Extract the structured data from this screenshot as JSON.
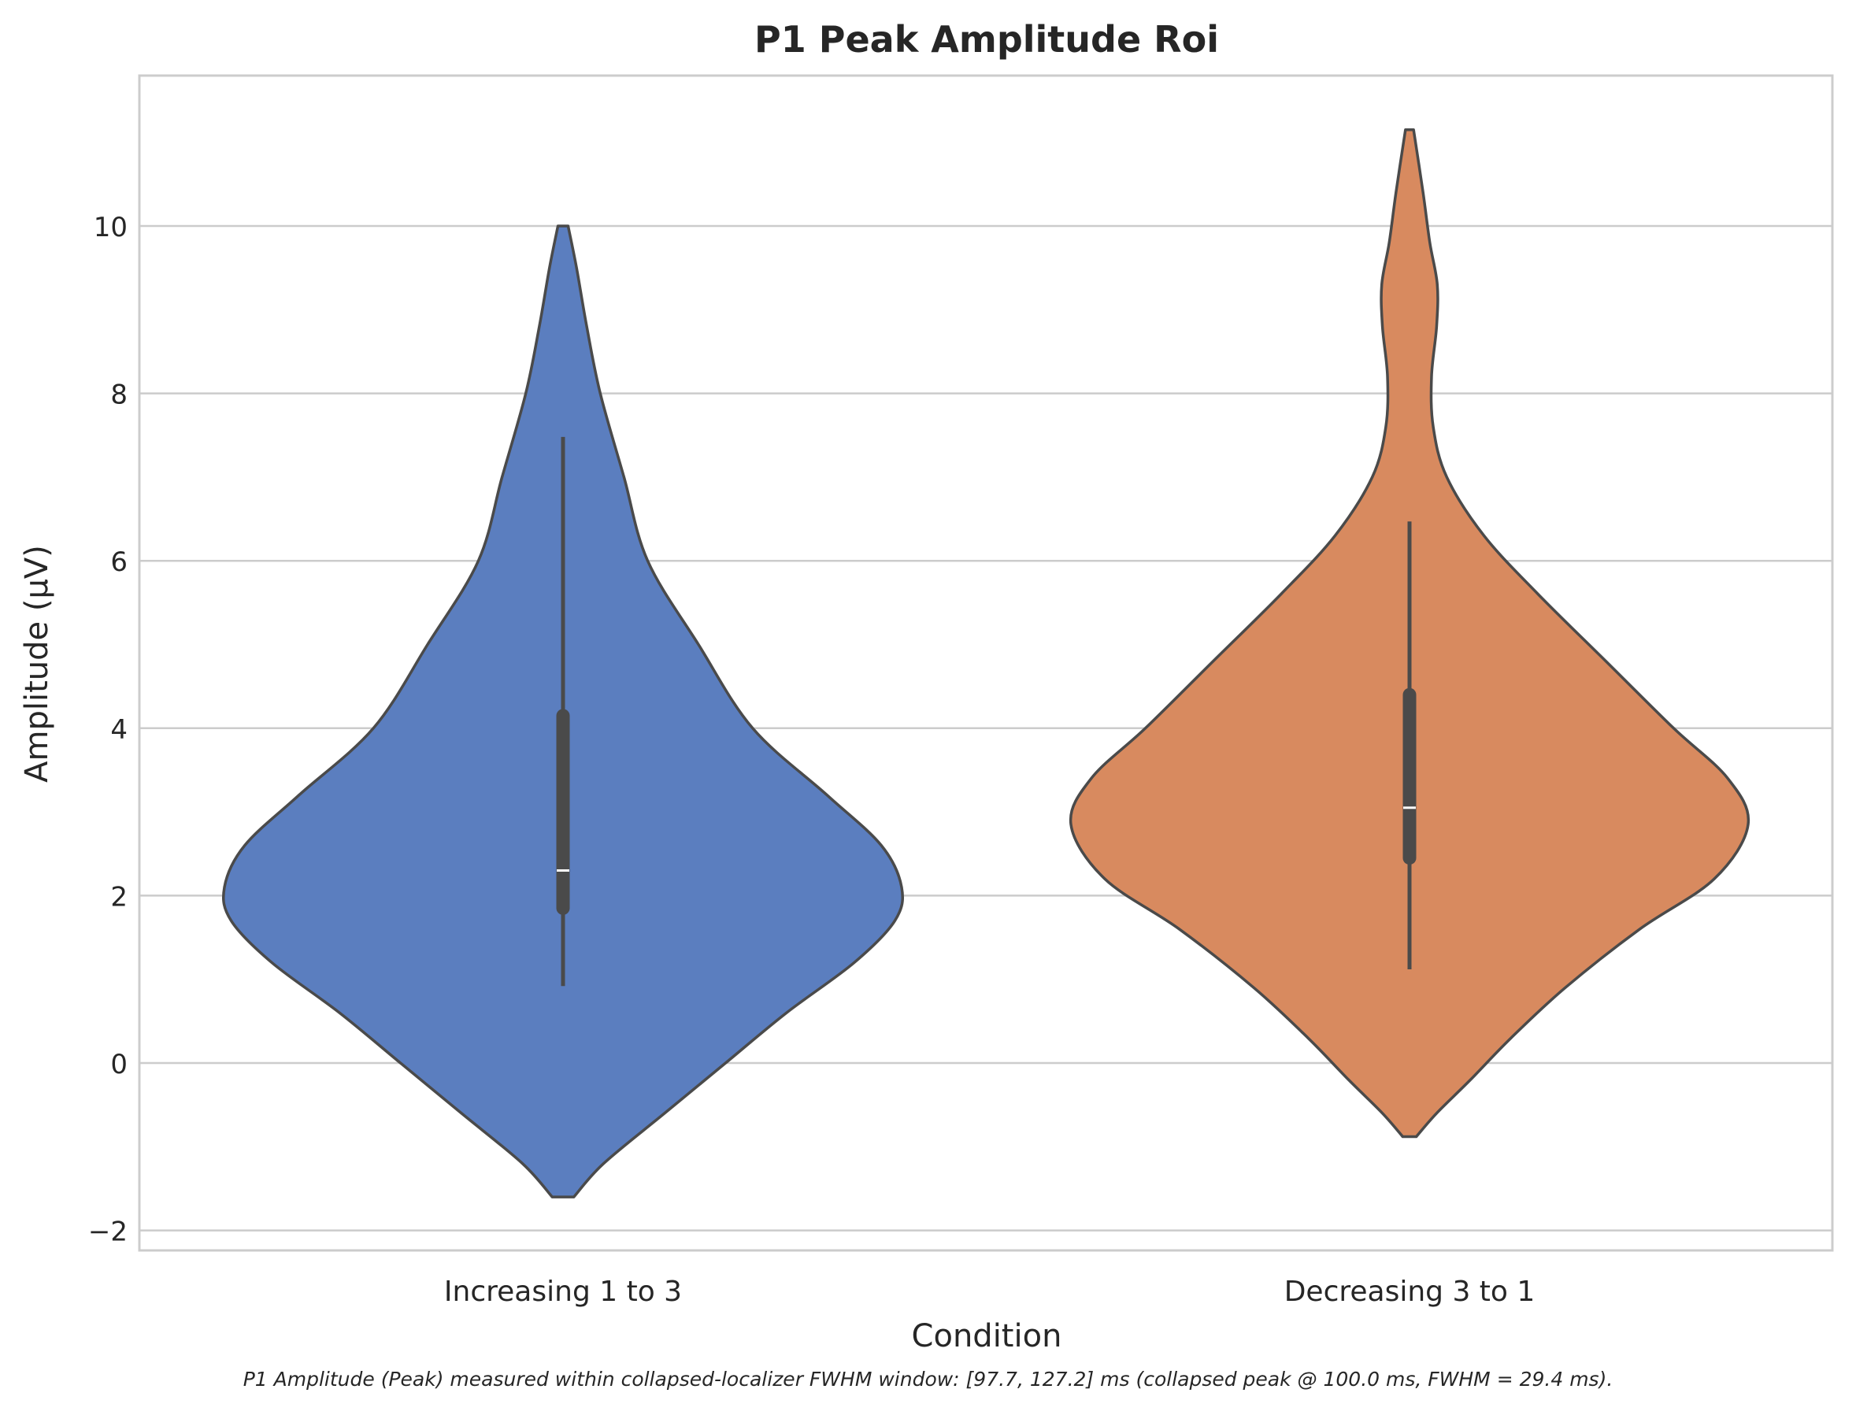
{
  "chart_data": {
    "type": "violin",
    "title": "P1 Peak Amplitude Roi",
    "xlabel": "Condition",
    "ylabel": "Amplitude (µV)",
    "ylim": [
      -2.25,
      11.8
    ],
    "yticks": [
      -2,
      0,
      2,
      4,
      6,
      8,
      10
    ],
    "ytick_labels": [
      "−2",
      "0",
      "2",
      "4",
      "6",
      "8",
      "10"
    ],
    "grid": "horizontal",
    "categories": [
      "Increasing 1 to 3",
      "Decreasing 3 to 1"
    ],
    "series": [
      {
        "category": "Increasing 1 to 3",
        "color": "#5b7ebf",
        "median": 2.3,
        "q1": 1.85,
        "q3": 4.15,
        "whisker_low": 0.92,
        "whisker_high": 7.48,
        "density": [
          [
            -1.6,
            0.032
          ],
          [
            -1.2,
            0.12
          ],
          [
            -0.6,
            0.3
          ],
          [
            0,
            0.48
          ],
          [
            0.6,
            0.66
          ],
          [
            1.2,
            0.86
          ],
          [
            1.7,
            0.98
          ],
          [
            2.1,
            1.0
          ],
          [
            2.6,
            0.94
          ],
          [
            3.2,
            0.78
          ],
          [
            4.0,
            0.56
          ],
          [
            5.0,
            0.4
          ],
          [
            6.0,
            0.25
          ],
          [
            7.0,
            0.18
          ],
          [
            8.0,
            0.11
          ],
          [
            8.8,
            0.07
          ],
          [
            9.5,
            0.04
          ],
          [
            10.0,
            0.015
          ]
        ]
      },
      {
        "category": "Decreasing 3 to 1",
        "color": "#d88a5f",
        "median": 3.05,
        "q1": 2.45,
        "q3": 4.4,
        "whisker_low": 1.12,
        "whisker_high": 6.47,
        "density": [
          [
            -0.88,
            0.02
          ],
          [
            -0.6,
            0.08
          ],
          [
            -0.2,
            0.18
          ],
          [
            0.3,
            0.3
          ],
          [
            0.9,
            0.46
          ],
          [
            1.6,
            0.68
          ],
          [
            2.2,
            0.9
          ],
          [
            2.85,
            1.0
          ],
          [
            3.4,
            0.94
          ],
          [
            4.0,
            0.78
          ],
          [
            4.8,
            0.58
          ],
          [
            5.6,
            0.38
          ],
          [
            6.3,
            0.22
          ],
          [
            7.0,
            0.11
          ],
          [
            7.6,
            0.07
          ],
          [
            8.2,
            0.065
          ],
          [
            8.8,
            0.08
          ],
          [
            9.3,
            0.082
          ],
          [
            9.8,
            0.06
          ],
          [
            10.4,
            0.04
          ],
          [
            11.15,
            0.012
          ]
        ]
      }
    ],
    "footnote": "P1 Amplitude (Peak) measured within collapsed-localizer FWHM window: [97.7, 127.2] ms (collapsed peak @ 100.0 ms, FWHM = 29.4 ms)."
  },
  "colors": {
    "grid": "#cccccc",
    "outline": "#4a4a4a",
    "box": "#4a4a4a",
    "median": "#ffffff"
  }
}
